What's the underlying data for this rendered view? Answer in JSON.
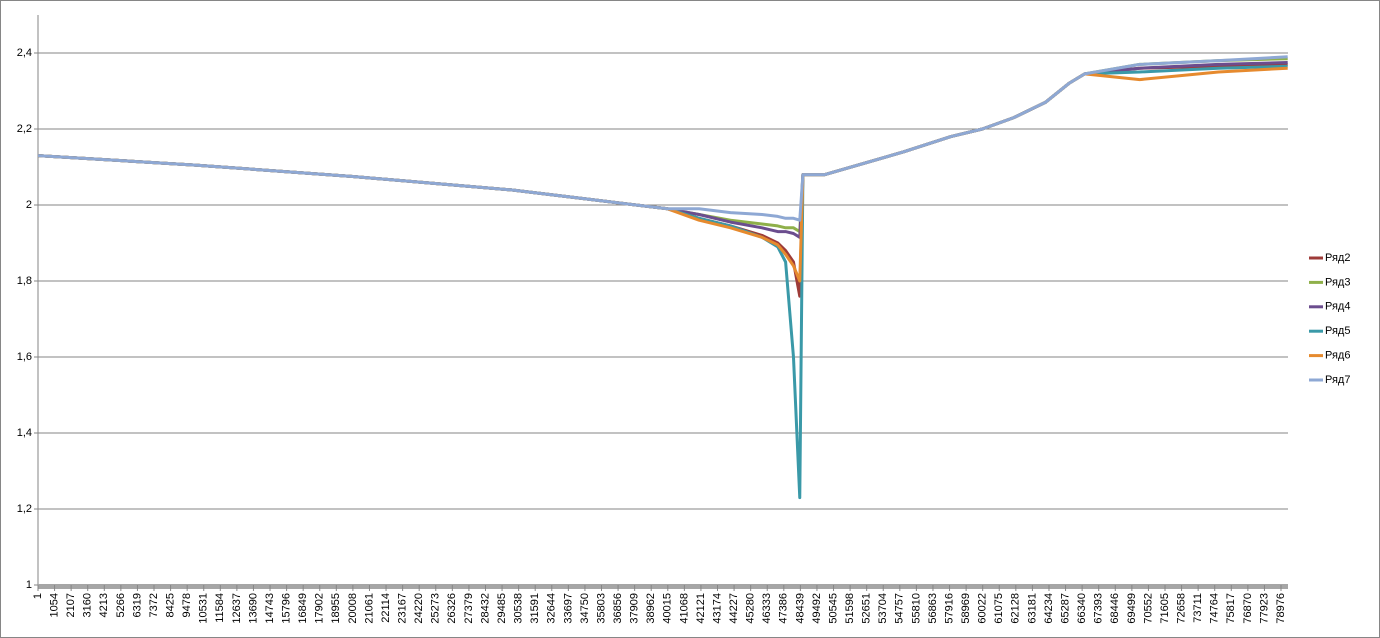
{
  "chart_data": {
    "type": "line",
    "x": [
      1,
      10000,
      20000,
      30000,
      35000,
      38000,
      40000,
      42000,
      44000,
      46000,
      47000,
      47500,
      48000,
      48400,
      48600,
      50000,
      55000,
      58000,
      60000,
      62000,
      64000,
      65500,
      66500,
      70000,
      75000,
      79400
    ],
    "series": [
      {
        "name": "Ряд2",
        "color": "#9e3b38",
        "values": [
          2.13,
          2.105,
          2.075,
          2.04,
          2.015,
          2.0,
          1.99,
          1.965,
          1.945,
          1.92,
          1.9,
          1.88,
          1.85,
          1.76,
          2.08,
          2.08,
          2.14,
          2.18,
          2.2,
          2.23,
          2.27,
          2.32,
          2.345,
          2.36,
          2.365,
          2.37
        ]
      },
      {
        "name": "Ряд3",
        "color": "#8fb04a",
        "values": [
          2.13,
          2.105,
          2.075,
          2.04,
          2.015,
          2.0,
          1.99,
          1.975,
          1.96,
          1.95,
          1.945,
          1.94,
          1.94,
          1.93,
          2.08,
          2.08,
          2.14,
          2.18,
          2.2,
          2.23,
          2.27,
          2.32,
          2.345,
          2.37,
          2.38,
          2.385
        ]
      },
      {
        "name": "Ряд4",
        "color": "#6b4d8e",
        "values": [
          2.13,
          2.105,
          2.075,
          2.04,
          2.015,
          2.0,
          1.99,
          1.975,
          1.955,
          1.94,
          1.93,
          1.93,
          1.925,
          1.915,
          2.08,
          2.08,
          2.14,
          2.18,
          2.2,
          2.23,
          2.27,
          2.32,
          2.345,
          2.36,
          2.37,
          2.375
        ]
      },
      {
        "name": "Ряд5",
        "color": "#3a99a8",
        "values": [
          2.13,
          2.105,
          2.075,
          2.04,
          2.015,
          2.0,
          1.99,
          1.965,
          1.945,
          1.915,
          1.89,
          1.85,
          1.6,
          1.23,
          2.08,
          2.08,
          2.14,
          2.18,
          2.2,
          2.23,
          2.27,
          2.32,
          2.345,
          2.35,
          2.36,
          2.365
        ]
      },
      {
        "name": "Ряд6",
        "color": "#e68a2e",
        "values": [
          2.13,
          2.105,
          2.075,
          2.04,
          2.015,
          2.0,
          1.99,
          1.96,
          1.94,
          1.915,
          1.895,
          1.87,
          1.84,
          1.8,
          2.08,
          2.08,
          2.14,
          2.18,
          2.2,
          2.23,
          2.27,
          2.32,
          2.345,
          2.33,
          2.35,
          2.36
        ]
      },
      {
        "name": "Ряд7",
        "color": "#8ea8d4",
        "values": [
          2.13,
          2.105,
          2.075,
          2.04,
          2.015,
          2.0,
          1.99,
          1.99,
          1.98,
          1.975,
          1.97,
          1.965,
          1.965,
          1.96,
          2.08,
          2.08,
          2.14,
          2.18,
          2.2,
          2.23,
          2.27,
          2.32,
          2.345,
          2.37,
          2.38,
          2.39
        ]
      }
    ],
    "xlim": [
      1,
      79420
    ],
    "xticks": [
      1,
      1054,
      2107,
      3160,
      4213,
      5266,
      6319,
      7372,
      8425,
      9478,
      10531,
      11584,
      12637,
      13690,
      14743,
      15796,
      16849,
      17902,
      18955,
      20008,
      21061,
      22114,
      23167,
      24220,
      25273,
      26326,
      27379,
      28432,
      29485,
      30538,
      31591,
      32644,
      33697,
      34750,
      35803,
      36856,
      37909,
      38962,
      40015,
      41068,
      42121,
      43174,
      44227,
      45280,
      46333,
      47386,
      48439,
      49492,
      50545,
      51598,
      52651,
      53704,
      54757,
      55810,
      56863,
      57916,
      58969,
      60022,
      61075,
      62128,
      63181,
      64234,
      65287,
      66340,
      67393,
      68446,
      69499,
      70552,
      71605,
      72658,
      73711,
      74764,
      75817,
      76870,
      77923,
      78976
    ],
    "ylim": [
      1,
      2.5
    ],
    "yticks": [
      1,
      {
        "value": 1.2,
        "label": "1,2"
      },
      {
        "value": 1.4,
        "label": "1,4"
      },
      {
        "value": 1.6,
        "label": "1,6"
      },
      {
        "value": 1.8,
        "label": "1,8"
      },
      2,
      {
        "value": 2.2,
        "label": "2,2"
      },
      {
        "value": 2.4,
        "label": "2,4"
      }
    ],
    "grid": true,
    "legend": "right"
  }
}
